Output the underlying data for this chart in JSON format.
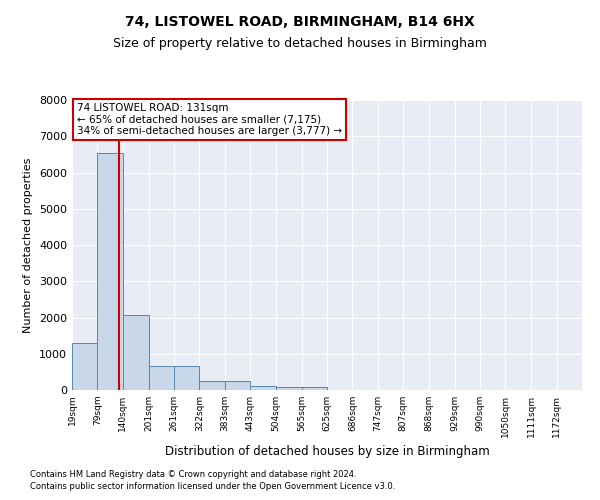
{
  "title": "74, LISTOWEL ROAD, BIRMINGHAM, B14 6HX",
  "subtitle": "Size of property relative to detached houses in Birmingham",
  "xlabel": "Distribution of detached houses by size in Birmingham",
  "ylabel": "Number of detached properties",
  "bin_edges": [
    19,
    79,
    140,
    201,
    261,
    322,
    383,
    443,
    504,
    565,
    625,
    686,
    747,
    807,
    868,
    929,
    990,
    1050,
    1111,
    1172,
    1232
  ],
  "bin_counts": [
    1300,
    6550,
    2080,
    650,
    650,
    250,
    250,
    120,
    80,
    80,
    0,
    0,
    0,
    0,
    0,
    0,
    0,
    0,
    0,
    0
  ],
  "bar_color": "#c8d8e8",
  "bar_edge_color": "#5588aa",
  "red_line_x": 131,
  "annotation_text": "74 LISTOWEL ROAD: 131sqm\n← 65% of detached houses are smaller (7,175)\n34% of semi-detached houses are larger (3,777) →",
  "annotation_box_color": "#ffffff",
  "annotation_box_edge": "#cc0000",
  "red_line_color": "#cc0000",
  "ylim": [
    0,
    8000
  ],
  "yticks": [
    0,
    1000,
    2000,
    3000,
    4000,
    5000,
    6000,
    7000,
    8000
  ],
  "fig_background_color": "#ffffff",
  "background_color": "#e8edf5",
  "grid_color": "#ffffff",
  "footer_line1": "Contains HM Land Registry data © Crown copyright and database right 2024.",
  "footer_line2": "Contains public sector information licensed under the Open Government Licence v3.0.",
  "title_fontsize": 10,
  "subtitle_fontsize": 9
}
